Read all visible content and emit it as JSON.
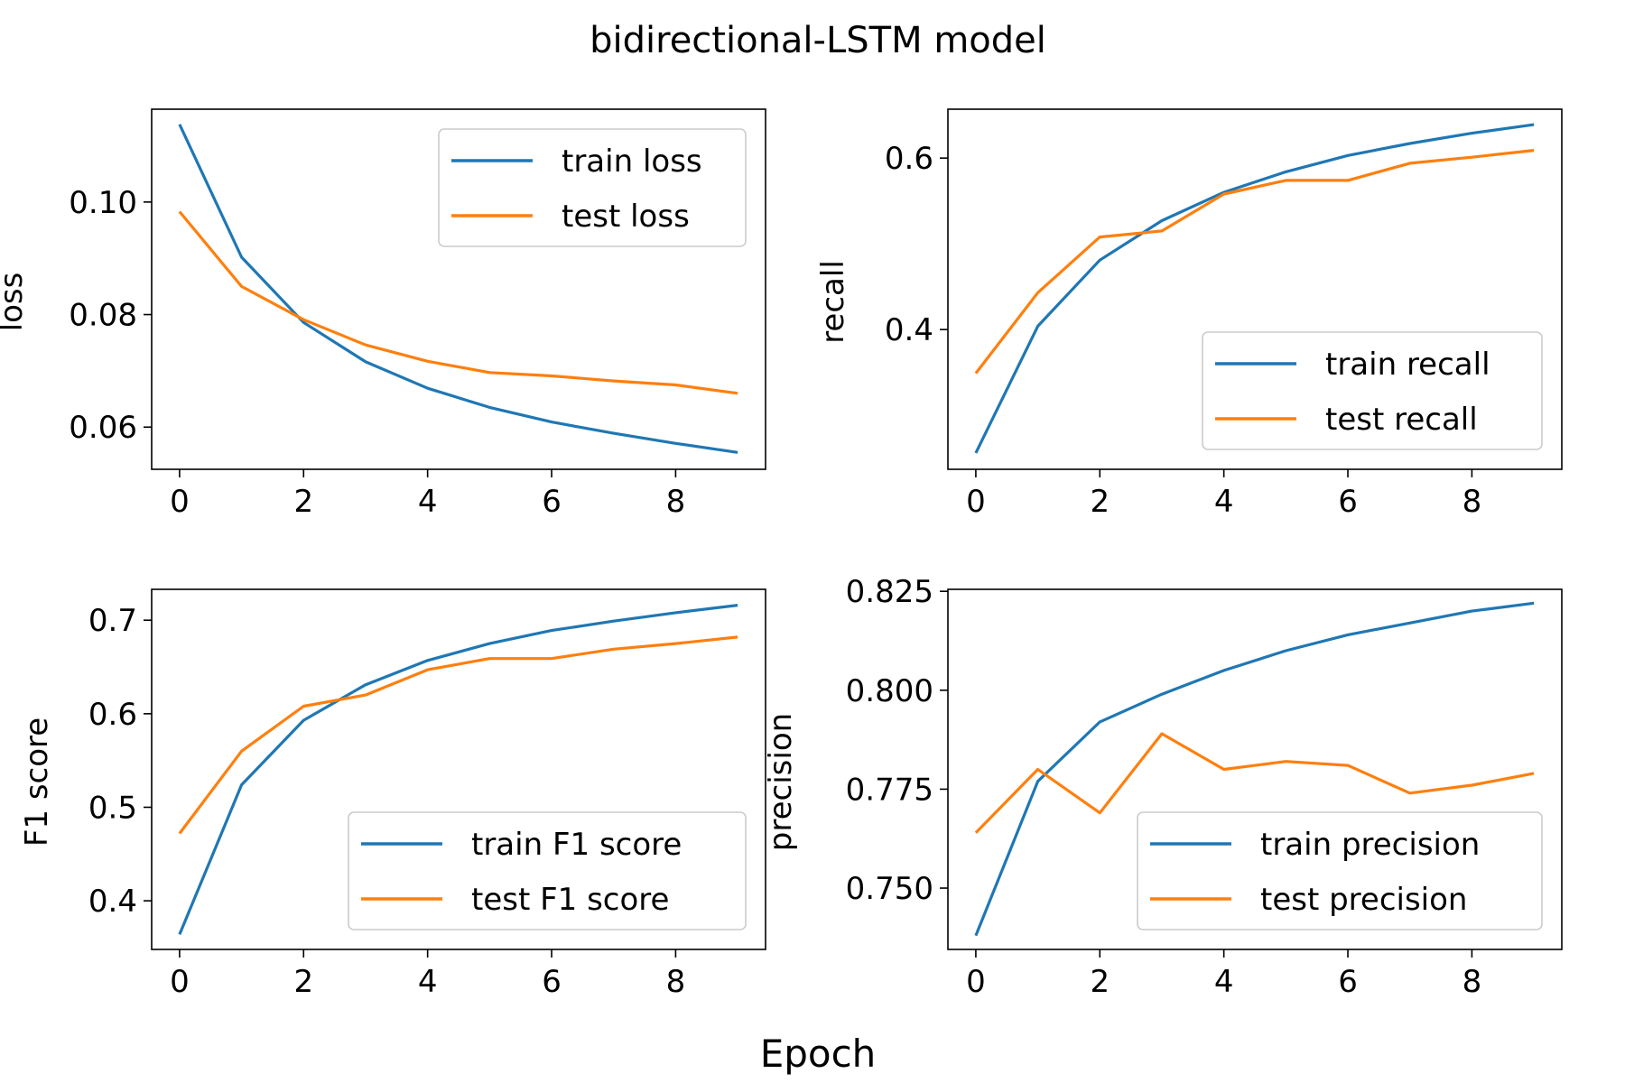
{
  "figure": {
    "title": "bidirectional-LSTM model",
    "xlabel": "Epoch",
    "colors": {
      "train": "#1f77b4",
      "test": "#ff7f0e"
    }
  },
  "chart_data": [
    {
      "type": "line",
      "ylabel": "loss",
      "x": [
        0,
        1,
        2,
        3,
        4,
        5,
        6,
        7,
        8,
        9
      ],
      "xlim": [
        -0.45,
        9.45
      ],
      "ylim": [
        0.0525,
        0.1165
      ],
      "xticks": [
        0,
        2,
        4,
        6,
        8
      ],
      "yticks": [
        0.06,
        0.08,
        0.1
      ],
      "ytick_labels": [
        "0.06",
        "0.08",
        "0.10"
      ],
      "legend_position": "upper right",
      "series": [
        {
          "name": "train loss",
          "color": "#1f77b4",
          "values": [
            0.1138,
            0.0902,
            0.0786,
            0.0716,
            0.0669,
            0.0635,
            0.0609,
            0.0589,
            0.0571,
            0.0555
          ]
        },
        {
          "name": "test loss",
          "color": "#ff7f0e",
          "values": [
            0.0983,
            0.085,
            0.0791,
            0.0746,
            0.0717,
            0.0697,
            0.0691,
            0.0682,
            0.0675,
            0.066
          ]
        }
      ]
    },
    {
      "type": "line",
      "ylabel": "recall",
      "x": [
        0,
        1,
        2,
        3,
        4,
        5,
        6,
        7,
        8,
        9
      ],
      "xlim": [
        -0.45,
        9.45
      ],
      "ylim": [
        0.237,
        0.657
      ],
      "xticks": [
        0,
        2,
        4,
        6,
        8
      ],
      "yticks": [
        0.4,
        0.6
      ],
      "ytick_labels": [
        "0.4",
        "0.6"
      ],
      "legend_position": "lower right",
      "series": [
        {
          "name": "train recall",
          "color": "#1f77b4",
          "values": [
            0.256,
            0.404,
            0.481,
            0.527,
            0.56,
            0.584,
            0.603,
            0.617,
            0.629,
            0.639
          ]
        },
        {
          "name": "test recall",
          "color": "#ff7f0e",
          "values": [
            0.349,
            0.443,
            0.508,
            0.515,
            0.558,
            0.574,
            0.574,
            0.594,
            0.601,
            0.609
          ]
        }
      ]
    },
    {
      "type": "line",
      "ylabel": "F1 score",
      "x": [
        0,
        1,
        2,
        3,
        4,
        5,
        6,
        7,
        8,
        9
      ],
      "xlim": [
        -0.45,
        9.45
      ],
      "ylim": [
        0.348,
        0.733
      ],
      "xticks": [
        0,
        2,
        4,
        6,
        8
      ],
      "yticks": [
        0.4,
        0.5,
        0.6,
        0.7
      ],
      "ytick_labels": [
        "0.4",
        "0.5",
        "0.6",
        "0.7"
      ],
      "legend_position": "lower right",
      "series": [
        {
          "name": "train F1 score",
          "color": "#1f77b4",
          "values": [
            0.364,
            0.524,
            0.593,
            0.631,
            0.657,
            0.675,
            0.689,
            0.699,
            0.708,
            0.716
          ]
        },
        {
          "name": "test F1 score",
          "color": "#ff7f0e",
          "values": [
            0.472,
            0.56,
            0.608,
            0.62,
            0.647,
            0.659,
            0.659,
            0.669,
            0.675,
            0.682
          ]
        }
      ]
    },
    {
      "type": "line",
      "ylabel": "precision",
      "x": [
        0,
        1,
        2,
        3,
        4,
        5,
        6,
        7,
        8,
        9
      ],
      "xlim": [
        -0.45,
        9.45
      ],
      "ylim": [
        0.7345,
        0.8255
      ],
      "xticks": [
        0,
        2,
        4,
        6,
        8
      ],
      "yticks": [
        0.75,
        0.775,
        0.8,
        0.825
      ],
      "ytick_labels": [
        "0.750",
        "0.775",
        "0.800",
        "0.825"
      ],
      "legend_position": "lower right",
      "series": [
        {
          "name": "train precision",
          "color": "#1f77b4",
          "values": [
            0.738,
            0.777,
            0.792,
            0.799,
            0.805,
            0.81,
            0.814,
            0.817,
            0.82,
            0.822
          ]
        },
        {
          "name": "test precision",
          "color": "#ff7f0e",
          "values": [
            0.764,
            0.78,
            0.769,
            0.789,
            0.78,
            0.782,
            0.781,
            0.774,
            0.776,
            0.779
          ]
        }
      ]
    }
  ]
}
